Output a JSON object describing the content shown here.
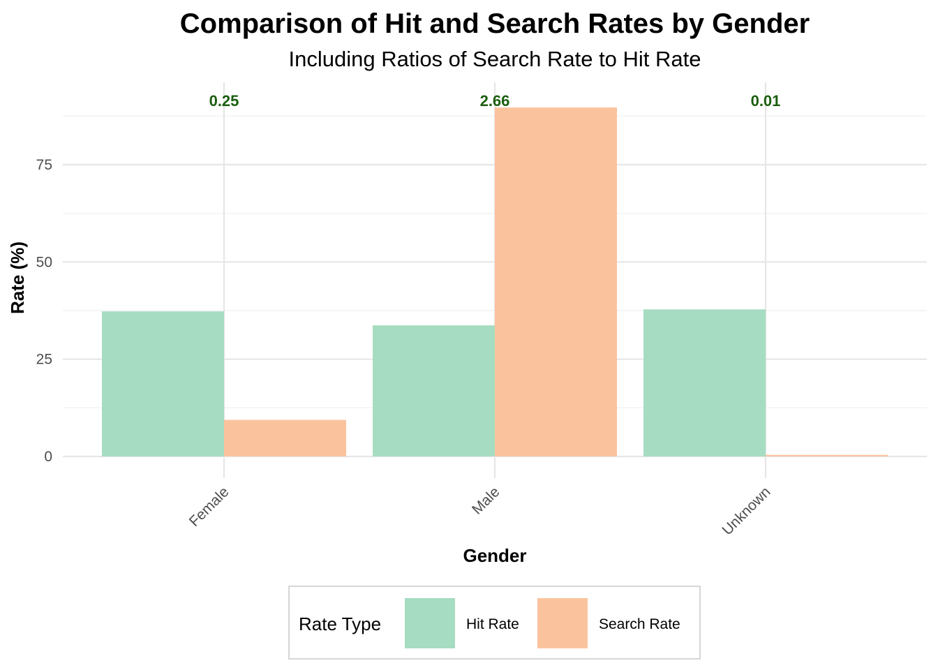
{
  "chart_data": {
    "type": "bar",
    "title": "Comparison of Hit and Search Rates by Gender",
    "subtitle": "Including Ratios of Search Rate to Hit Rate",
    "xlabel": "Gender",
    "ylabel": "Rate (%)",
    "categories": [
      "Female",
      "Male",
      "Unknown"
    ],
    "series": [
      {
        "name": "Hit Rate",
        "color": "#a6dcc1",
        "values": [
          37.3,
          33.7,
          37.8
        ]
      },
      {
        "name": "Search Rate",
        "color": "#fbc39d",
        "values": [
          9.4,
          89.7,
          0.4
        ]
      }
    ],
    "ratio_labels": [
      "0.25",
      "2.66",
      "0.01"
    ],
    "ratio_label_color": "#1b5e0f",
    "ylim": [
      0,
      92
    ],
    "y_ticks": [
      0,
      25,
      50,
      75
    ],
    "y_tick_labels": [
      "0",
      "25",
      "50",
      "75"
    ],
    "grid": true,
    "legend": {
      "title": "Rate Type",
      "position": "bottom",
      "items": [
        "Hit Rate",
        "Search Rate"
      ]
    }
  }
}
